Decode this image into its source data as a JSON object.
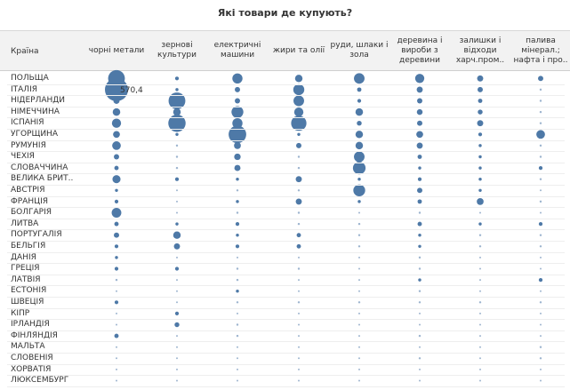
{
  "chart_data": {
    "type": "bubble-matrix",
    "title": "Які товари де купують?",
    "row_header": "Країна",
    "columns": [
      "чорні метали",
      "зернові культури",
      "електричні машини",
      "жири та олії",
      "руди, шлаки і зола",
      "деревина і вироби з деревини",
      "залишки і відходи харч.пром..",
      "палива мінерал.; нафта і про.."
    ],
    "rows": [
      "ПОЛЬЩА",
      "ІТАЛІЯ",
      "НІДЕРЛАНДИ",
      "НІМЕЧЧИНА",
      "ІСПАНІЯ",
      "УГОРЩИНА",
      "РУМУНІЯ",
      "ЧЕХІЯ",
      "СЛОВАЧЧИНА",
      "ВЕЛИКА БРИТ..",
      "АВСТРІЯ",
      "ФРАНЦІЯ",
      "БОЛГАРІЯ",
      "ЛИТВА",
      "ПОРТУГАЛІЯ",
      "БЕЛЬГІЯ",
      "ДАНІЯ",
      "ГРЕЦІЯ",
      "ЛАТВІЯ",
      "ЕСТОНІЯ",
      "ШВЕЦІЯ",
      "КІПР",
      "ІРЛАНДІЯ",
      "ФІНЛЯНДІЯ",
      "МАЛЬТА",
      "СЛОВЕНІЯ",
      "ХОРВАТІЯ",
      "ЛЮКСЕМБУРГ"
    ],
    "values": [
      [
        300,
        15,
        110,
        60,
        120,
        90,
        40,
        30
      ],
      [
        570.4,
        10,
        30,
        130,
        20,
        40,
        30,
        5
      ],
      [
        40,
        300,
        30,
        120,
        15,
        30,
        20,
        5
      ],
      [
        60,
        60,
        150,
        90,
        60,
        35,
        25,
        5
      ],
      [
        90,
        320,
        110,
        250,
        25,
        30,
        40,
        5
      ],
      [
        50,
        10,
        330,
        10,
        60,
        50,
        15,
        80
      ],
      [
        80,
        5,
        50,
        30,
        60,
        40,
        10,
        5
      ],
      [
        30,
        5,
        45,
        5,
        120,
        20,
        10,
        5
      ],
      [
        20,
        5,
        40,
        5,
        170,
        10,
        10,
        15
      ],
      [
        70,
        15,
        10,
        40,
        10,
        15,
        10,
        5
      ],
      [
        10,
        3,
        5,
        5,
        150,
        30,
        10,
        3
      ],
      [
        15,
        3,
        10,
        40,
        10,
        20,
        50,
        5
      ],
      [
        100,
        3,
        5,
        5,
        3,
        5,
        3,
        3
      ],
      [
        20,
        10,
        15,
        5,
        5,
        20,
        10,
        15
      ],
      [
        30,
        60,
        10,
        20,
        5,
        10,
        5,
        5
      ],
      [
        15,
        40,
        15,
        20,
        5,
        10,
        5,
        5
      ],
      [
        10,
        3,
        3,
        3,
        3,
        5,
        3,
        3
      ],
      [
        15,
        15,
        5,
        5,
        3,
        5,
        3,
        3
      ],
      [
        5,
        3,
        5,
        3,
        3,
        10,
        3,
        15
      ],
      [
        3,
        3,
        10,
        3,
        3,
        5,
        3,
        3
      ],
      [
        15,
        3,
        5,
        5,
        5,
        5,
        5,
        5
      ],
      [
        3,
        15,
        3,
        3,
        3,
        3,
        3,
        3
      ],
      [
        3,
        25,
        5,
        3,
        3,
        3,
        3,
        3
      ],
      [
        20,
        3,
        5,
        3,
        3,
        5,
        3,
        3
      ],
      [
        3,
        3,
        3,
        3,
        3,
        3,
        3,
        5
      ],
      [
        3,
        3,
        3,
        3,
        3,
        5,
        3,
        5
      ],
      [
        3,
        3,
        3,
        3,
        3,
        3,
        3,
        3
      ],
      [
        3,
        3,
        3,
        3,
        3,
        3,
        3,
        3
      ]
    ],
    "highlighted_label": "570,4",
    "colors": {
      "bubble": "#4e79a7",
      "header_bg": "#f2f2f2",
      "grid": "#eeeeee"
    }
  }
}
